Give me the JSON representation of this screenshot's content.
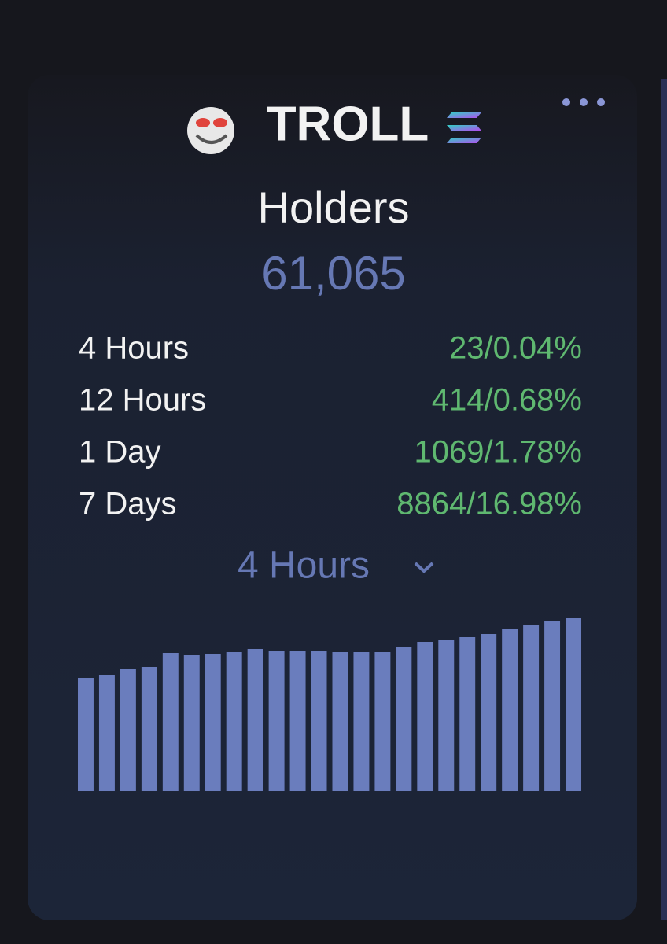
{
  "header": {
    "token": "TROLL"
  },
  "title": "Holders",
  "total": "61,065",
  "changes": [
    {
      "label": "4 Hours",
      "value": "23/0.04%"
    },
    {
      "label": "12 Hours",
      "value": "414/0.68%"
    },
    {
      "label": "1 Day",
      "value": "1069/1.78%"
    },
    {
      "label": "7 Days",
      "value": "8864/16.98%"
    }
  ],
  "period_selector": "4 Hours",
  "chart": {
    "type": "bar",
    "color": "#6a7dbd",
    "values": [
      143,
      147,
      155,
      157,
      175,
      173,
      174,
      176,
      180,
      178,
      178,
      177,
      176,
      176,
      176,
      183,
      189,
      192,
      195,
      199,
      205,
      210,
      215,
      219
    ]
  }
}
